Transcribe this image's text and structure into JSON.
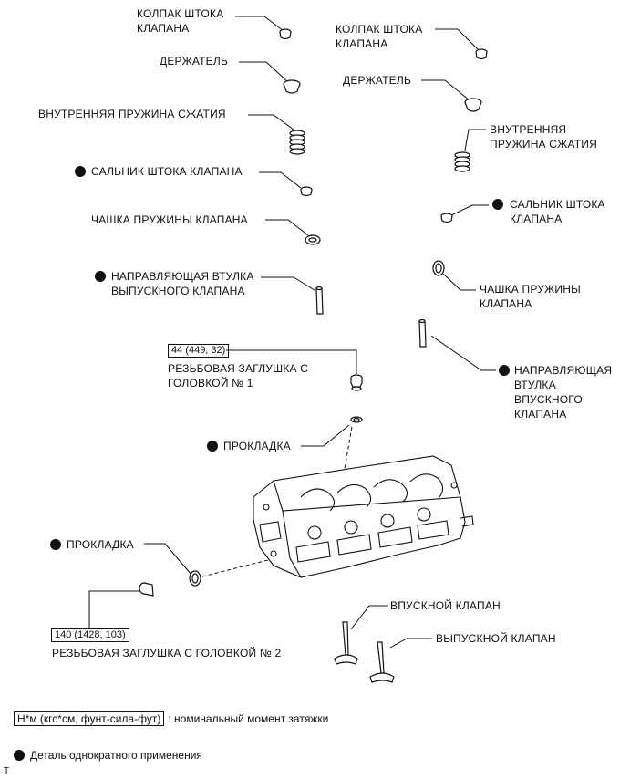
{
  "parts": {
    "left_valve_cap": "КОЛПАК ШТОКА\nКЛАПАНА",
    "left_retainer": "ДЕРЖАТЕЛЬ",
    "left_inner_spring": "ВНУТРЕННЯЯ ПРУЖИНА СЖАТИЯ",
    "left_stem_seal": "САЛЬНИК ШТОКА КЛАПАНА",
    "left_spring_seat": "ЧАШКА ПРУЖИНЫ КЛАПАНА",
    "exhaust_guide": "НАПРАВЛЯЮЩАЯ ВТУЛКА\nВЫПУСКНОГО КЛАПАНА",
    "right_valve_cap": "КОЛПАК ШТОКА\nКЛАПАНА",
    "right_retainer": "ДЕРЖАТЕЛЬ",
    "right_inner_spring": "ВНУТРЕННЯЯ\nПРУЖИНА СЖАТИЯ",
    "right_stem_seal": "САЛЬНИК ШТОКА\nКЛАПАНА",
    "right_spring_seat": "ЧАШКА ПРУЖИНЫ\nКЛАПАНА",
    "intake_guide": "НАПРАВЛЯЮЩАЯ\nВТУЛКА\nВПУСКНОГО\nКЛАПАНА",
    "plug1_torque": "44 (449, 32)",
    "plug1_label": "РЕЗЬБОВАЯ ЗАГЛУШКА  С\nГОЛОВКОЙ № 1",
    "gasket_upper": "ПРОКЛАДКА",
    "gasket_lower": "ПРОКЛАДКА",
    "plug2_torque": "140 (1428, 103)",
    "plug2_label": "РЕЗЬБОВАЯ ЗАГЛУШКА  С ГОЛОВКОЙ № 2",
    "intake_valve": "ВПУСКНОЙ КЛАПАН",
    "exhaust_valve": "ВЫПУСКНОЙ КЛАПАН"
  },
  "legend": {
    "torque_units": "Н*м (кгс*см, фунт-сила-фут)",
    "torque_desc": ": номинальный момент затяжки",
    "non_reusable": "Деталь однократного применения"
  },
  "footer_mark": "T"
}
